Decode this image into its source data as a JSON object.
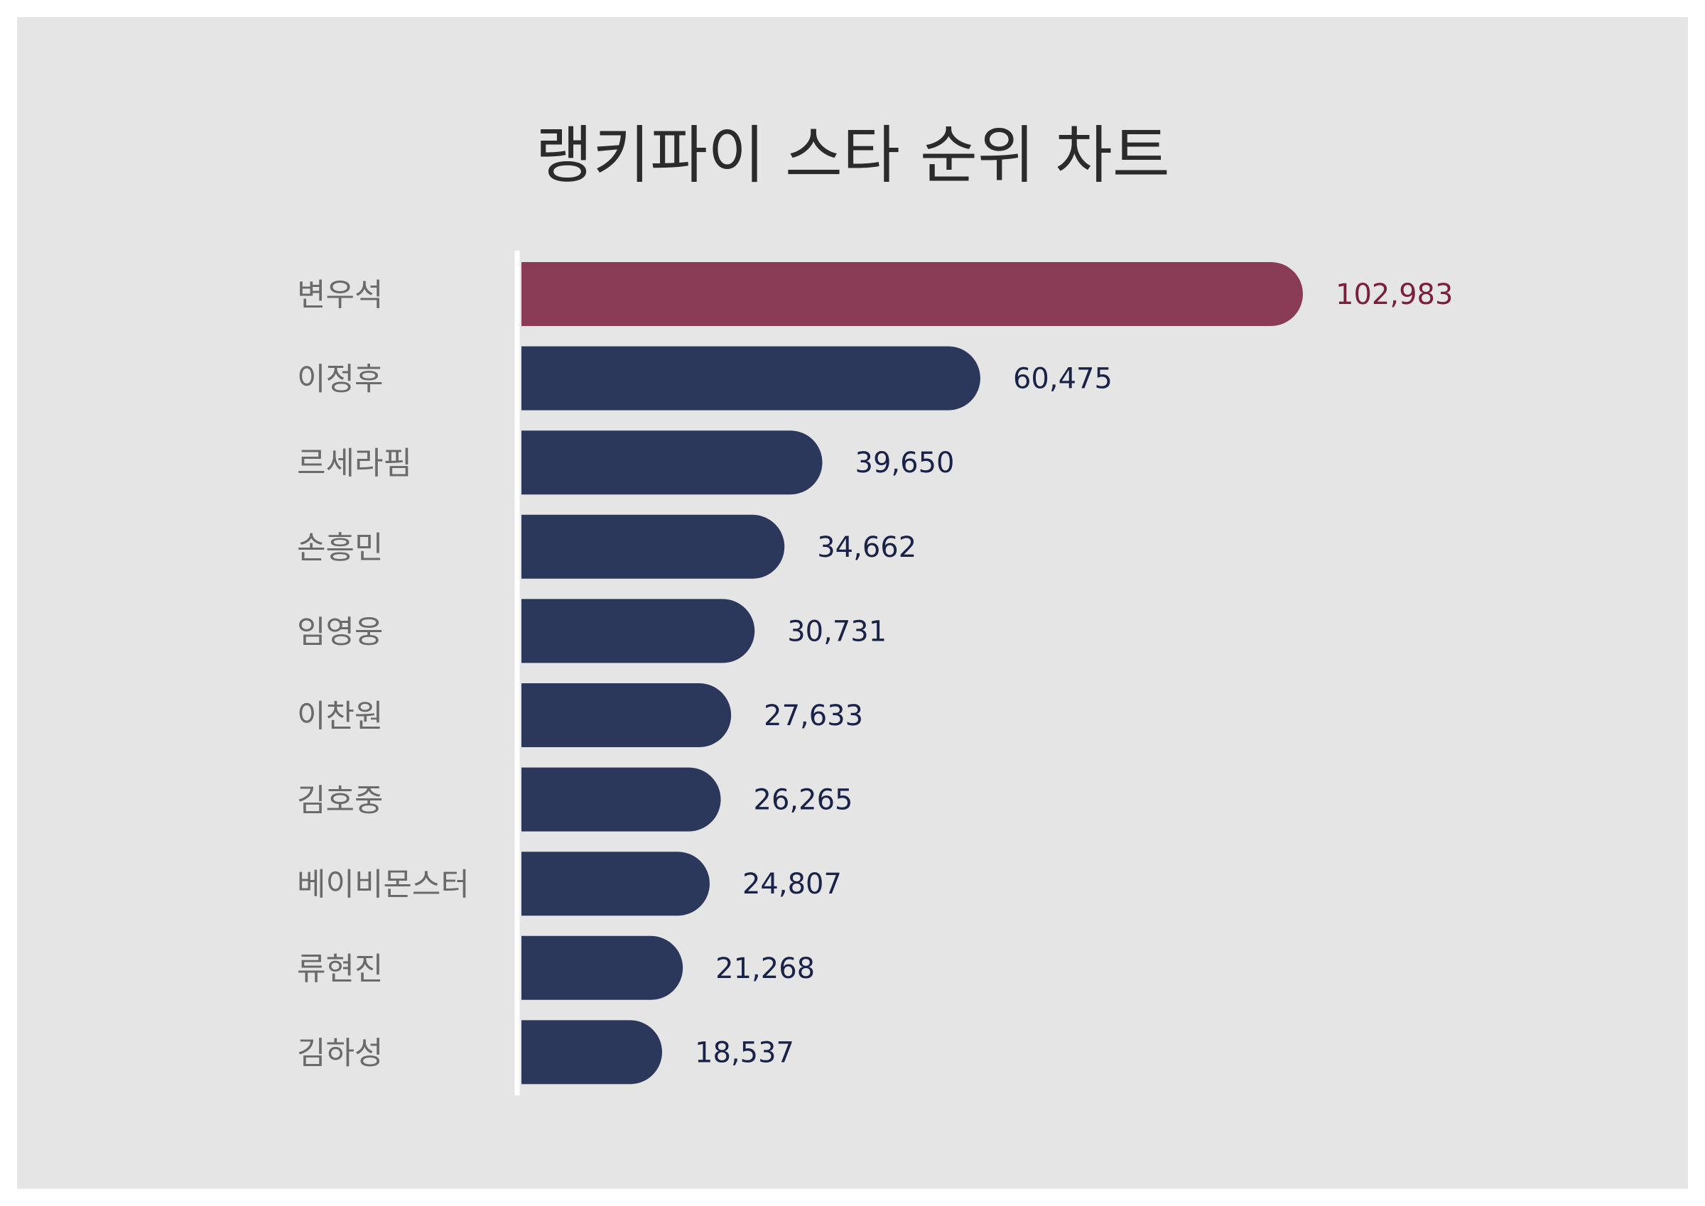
{
  "chart_data": {
    "type": "bar",
    "orientation": "horizontal",
    "title": "랭키파이 스타 순위 차트",
    "categories": [
      "변우석",
      "이정후",
      "르세라핌",
      "손흥민",
      "임영웅",
      "이찬원",
      "김호중",
      "베이비몬스터",
      "류현진",
      "김하성"
    ],
    "values": [
      102983,
      60475,
      39650,
      34662,
      30731,
      27633,
      26265,
      24807,
      21268,
      18537
    ],
    "value_labels": [
      "102,983",
      "60,475",
      "39,650",
      "34,662",
      "30,731",
      "27,633",
      "26,265",
      "24,807",
      "21,268",
      "18,537"
    ],
    "grid": false,
    "legend": "none"
  },
  "colors": {
    "background": "#e6e5e6",
    "highlight_bar": "#8a3c57",
    "bar": "#2c375c",
    "highlight_label": "#7a1f3e",
    "label": "#1a2247"
  }
}
